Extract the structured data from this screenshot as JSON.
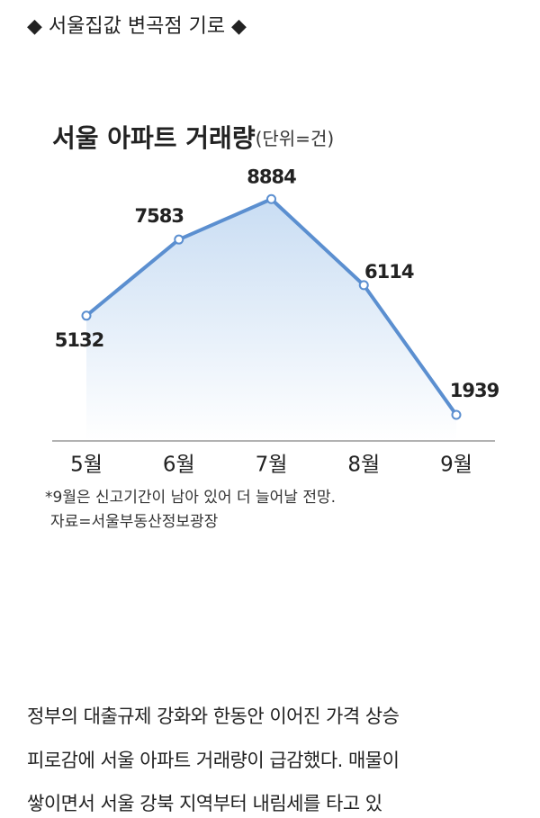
{
  "header": {
    "title": "◆ 서울집값 변곡점 기로 ◆"
  },
  "chart_data": {
    "type": "line",
    "title": "서울 아파트 거래량",
    "subtitle": "(단위=건)",
    "categories": [
      "5월",
      "6월",
      "7월",
      "8월",
      "9월"
    ],
    "values": [
      5132,
      7583,
      8884,
      6114,
      1939
    ],
    "color": "#5b8fd0",
    "area": true,
    "ylim": [
      1100,
      9500
    ],
    "notes": [
      "*9월은 신고기간이 남아 있어 더 늘어날 전망.",
      "자료=서울부동산정보광장"
    ]
  },
  "article": {
    "lines": [
      "정부의 대출규제 강화와 한동안 이어진 가격 상승",
      "피로감에 서울 아파트 거래량이 급감했다. 매물이",
      "쌓이면서 서울 강북 지역부터 내림세를 타고 있"
    ]
  }
}
